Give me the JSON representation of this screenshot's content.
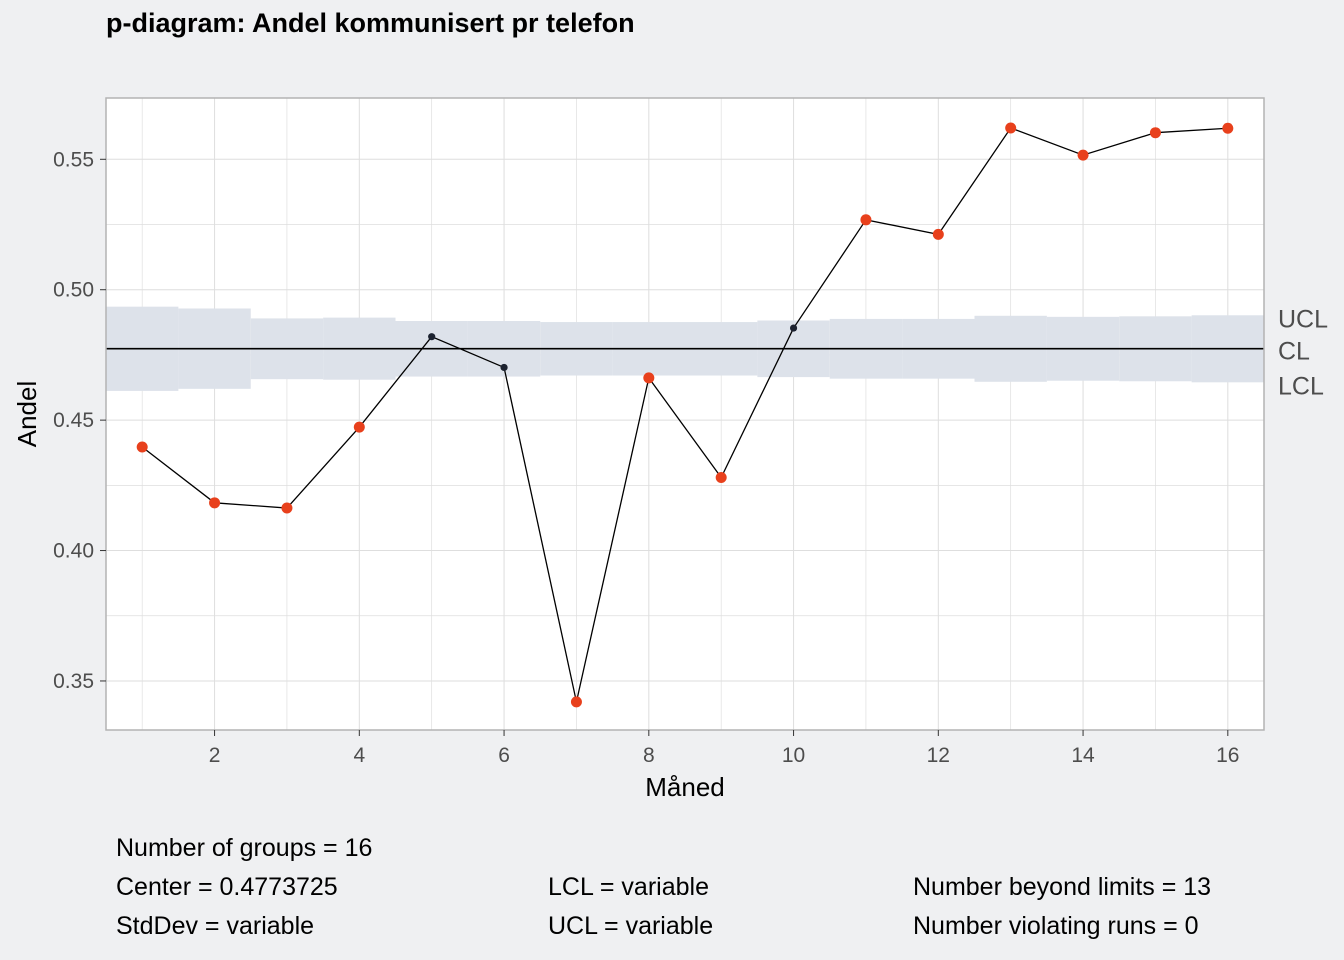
{
  "chart_data": {
    "type": "line",
    "title": "p-diagram: Andel kommunisert pr telefon",
    "xlabel": "Måned",
    "ylabel": "Andel",
    "x": [
      1,
      2,
      3,
      4,
      5,
      6,
      7,
      8,
      9,
      10,
      11,
      12,
      13,
      14,
      15,
      16
    ],
    "series": [
      {
        "values": [
          0.4397,
          0.4183,
          0.4163,
          0.4473,
          0.482,
          0.4702,
          0.342,
          0.4662,
          0.428,
          0.4853,
          0.5268,
          0.5212,
          0.562,
          0.5516,
          0.5602,
          0.5619
        ]
      }
    ],
    "beyond_limits": [
      true,
      true,
      true,
      true,
      false,
      false,
      true,
      true,
      true,
      false,
      true,
      true,
      true,
      true,
      true,
      true
    ],
    "center": 0.4773725,
    "ucl": [
      0.4935,
      0.4928,
      0.489,
      0.4893,
      0.488,
      0.488,
      0.4876,
      0.4876,
      0.4876,
      0.4882,
      0.4888,
      0.4888,
      0.49,
      0.4896,
      0.4898,
      0.4902
    ],
    "lcl": [
      0.4612,
      0.462,
      0.4657,
      0.4655,
      0.4667,
      0.4667,
      0.4671,
      0.4671,
      0.4671,
      0.4665,
      0.4659,
      0.4659,
      0.4647,
      0.4651,
      0.4649,
      0.4645
    ],
    "limit_labels": [
      "UCL",
      "CL",
      "LCL"
    ],
    "xlim": [
      0.5,
      16.5
    ],
    "ylim": [
      0.3312,
      0.5735
    ],
    "x_ticks": [
      2,
      4,
      6,
      8,
      10,
      12,
      14,
      16
    ],
    "y_ticks": [
      0.35,
      0.4,
      0.45,
      0.5,
      0.55
    ],
    "x_tick_labels": [
      "2",
      "4",
      "6",
      "8",
      "10",
      "12",
      "14",
      "16"
    ],
    "y_tick_labels": [
      "0.35",
      "0.40",
      "0.45",
      "0.50",
      "0.55"
    ],
    "grid": true,
    "colors": {
      "line": "#000000",
      "point_in": "#1c2230",
      "point_out": "#e8401c",
      "limits_band": "#dde2ea",
      "center_line": "#000000",
      "panel": "#ffffff",
      "background": "#eff0f2",
      "grid": "#dedede"
    }
  },
  "stats": {
    "groups": "Number of groups = 16",
    "center": "Center = 0.4773725",
    "stddev": "StdDev = variable",
    "lcl": "LCL = variable",
    "ucl": "UCL = variable",
    "beyond": "Number beyond limits = 13",
    "violating": "Number violating runs = 0"
  }
}
